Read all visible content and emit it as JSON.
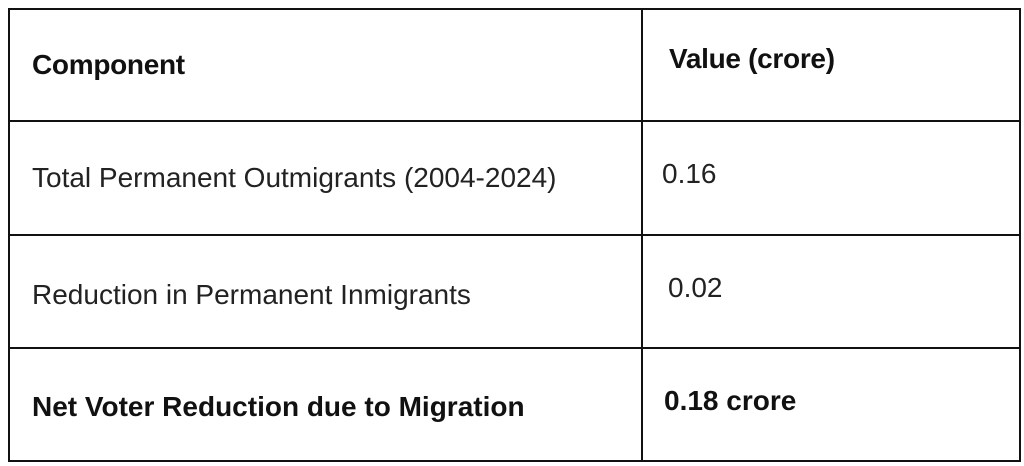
{
  "table": {
    "headers": {
      "component": "Component",
      "value": "Value (crore)"
    },
    "rows": [
      {
        "component": "Total Permanent Outmigrants (2004-2024)",
        "value": "0.16"
      },
      {
        "component": "Reduction in Permanent Inmigrants",
        "value": "0.02"
      },
      {
        "component": "Net Voter Reduction due to Migration",
        "value": "0.18 crore",
        "bold": true
      }
    ]
  }
}
